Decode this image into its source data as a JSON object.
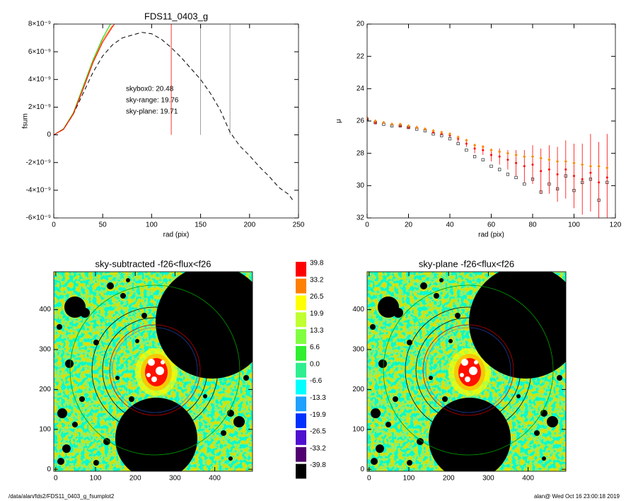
{
  "chart_data": [
    {
      "type": "line",
      "title": "FDS11_0403_g",
      "xlabel": "rad (pix)",
      "ylabel": "fsum",
      "xlim": [
        0,
        250
      ],
      "xticks": [
        0,
        50,
        100,
        150,
        200,
        250
      ],
      "ylim": [
        -6e-09,
        8e-09
      ],
      "yticks": [
        {
          "value": -6e-09,
          "label": "-6×10⁻⁹"
        },
        {
          "value": -4e-09,
          "label": "-4×10⁻⁹"
        },
        {
          "value": -2e-09,
          "label": "-2×10⁻⁹"
        },
        0,
        {
          "value": 2e-09,
          "label": "2×10⁻⁹"
        },
        {
          "value": 4e-09,
          "label": "4×10⁻⁹"
        },
        {
          "value": 6e-09,
          "label": "6×10⁻⁹"
        },
        {
          "value": 8e-09,
          "label": "8×10⁻⁹"
        }
      ],
      "series": [
        {
          "color": "#000000",
          "dash": true,
          "x": [
            0,
            10,
            20,
            30,
            40,
            50,
            60,
            70,
            80,
            90,
            100,
            110,
            120,
            130,
            140,
            150,
            160,
            170,
            180,
            190,
            200,
            210,
            220,
            230,
            240,
            245
          ],
          "values": [
            0,
            4e-10,
            1.5e-09,
            3e-09,
            4.5e-09,
            5.7e-09,
            6.5e-09,
            7e-09,
            7.2e-09,
            7.4e-09,
            7.3e-09,
            6.9e-09,
            6.3e-09,
            5.6e-09,
            4.8e-09,
            4e-09,
            3e-09,
            1.8e-09,
            2e-10,
            -8e-10,
            -1.5e-09,
            -2.3e-09,
            -3e-09,
            -3.8e-09,
            -4.3e-09,
            -4.8e-09
          ]
        },
        {
          "color": "#00dd00",
          "dash": false,
          "x": [
            0,
            10,
            20,
            30,
            40,
            50,
            58
          ],
          "values": [
            0,
            4.5e-10,
            1.6e-09,
            3.5e-09,
            5.4e-09,
            7e-09,
            8e-09
          ]
        },
        {
          "color": "#ff8800",
          "dash": false,
          "x": [
            0,
            10,
            20,
            30,
            40,
            50,
            60
          ],
          "values": [
            0,
            4.2e-10,
            1.55e-09,
            3.4e-09,
            5.3e-09,
            6.85e-09,
            7.9e-09
          ]
        },
        {
          "color": "#ff0000",
          "dash": false,
          "x": [
            0,
            10,
            20,
            30,
            40,
            50,
            60,
            62
          ],
          "values": [
            0,
            4e-10,
            1.5e-09,
            3.3e-09,
            5.2e-09,
            6.7e-09,
            7.8e-09,
            8e-09
          ]
        }
      ],
      "vlines": [
        {
          "x": 120,
          "color": "#ff0000"
        },
        {
          "x": 150,
          "color": "#888888"
        },
        {
          "x": 180,
          "color": "#888888"
        }
      ],
      "annotations": [
        {
          "text": "skybox0: 20.48",
          "color": "#000000"
        },
        {
          "text": "sky-range: 19.76",
          "color": "#ff0000"
        },
        {
          "text": "sky-plane: 19.71",
          "color": "#00dd00"
        }
      ]
    },
    {
      "type": "scatter",
      "xlabel": "rad (pix)",
      "ylabel": "μ",
      "xlim": [
        0,
        120
      ],
      "xticks": [
        0,
        20,
        40,
        60,
        80,
        100,
        120
      ],
      "ylim": [
        32,
        20
      ],
      "yticks": [
        20,
        22,
        24,
        26,
        28,
        30,
        32
      ],
      "x": [
        0,
        4,
        8,
        12,
        16,
        20,
        24,
        28,
        32,
        36,
        40,
        44,
        48,
        52,
        56,
        60,
        64,
        68,
        72,
        76,
        80,
        84,
        88,
        92,
        96,
        100,
        104,
        108,
        112,
        116
      ],
      "series": [
        {
          "color": "#000000",
          "marker": "square",
          "values": [
            25.9,
            26.1,
            26.2,
            26.3,
            26.3,
            26.4,
            26.5,
            26.6,
            26.8,
            26.9,
            27.1,
            27.4,
            27.8,
            28.2,
            28.4,
            28.8,
            29.0,
            29.3,
            29.5,
            29.9,
            29.6,
            30.4,
            29.9,
            30.2,
            29.4,
            30.3,
            29.8,
            29.6,
            30.9,
            29.8
          ]
        },
        {
          "color": "#ff0000",
          "marker": "errorbar",
          "values": [
            25.9,
            26.1,
            26.1,
            26.2,
            26.3,
            26.4,
            26.4,
            26.5,
            26.7,
            26.8,
            26.9,
            27.1,
            27.4,
            27.7,
            27.8,
            28.1,
            28.2,
            28.4,
            28.6,
            28.8,
            28.7,
            29.1,
            29.0,
            29.3,
            29.0,
            29.4,
            29.6,
            29.2,
            29.8,
            29.5
          ],
          "errors": [
            0.1,
            0.1,
            0.1,
            0.1,
            0.1,
            0.1,
            0.1,
            0.1,
            0.1,
            0.1,
            0.1,
            0.2,
            0.2,
            0.3,
            0.3,
            0.4,
            0.5,
            0.6,
            0.8,
            1.0,
            1.2,
            1.4,
            1.5,
            1.7,
            1.8,
            2.0,
            2.2,
            2.4,
            2.5,
            2.7
          ]
        },
        {
          "color": "#ff8800",
          "marker": "diamond",
          "values": [
            25.8,
            26.0,
            26.1,
            26.2,
            26.2,
            26.3,
            26.4,
            26.5,
            26.6,
            26.7,
            26.8,
            27.0,
            27.2,
            27.5,
            27.6,
            27.8,
            27.9,
            28.0,
            28.1,
            28.2,
            28.2,
            28.3,
            28.4,
            28.5,
            28.5,
            28.6,
            28.7,
            28.8,
            28.8,
            28.9
          ]
        }
      ]
    },
    {
      "type": "image",
      "title": "sky-subtracted -f26<flux<f26",
      "xlim": [
        -5,
        495
      ],
      "xticks": [
        0,
        100,
        200,
        300,
        400
      ],
      "ylim": [
        -5,
        495
      ],
      "yticks": [
        0,
        100,
        200,
        300,
        400
      ],
      "colorbar": {
        "ticks": [
          39.8,
          33.2,
          26.5,
          19.9,
          13.3,
          6.6,
          {
            "value": 0,
            "label": "0.0"
          },
          -6.6,
          -13.3,
          -19.9,
          -26.5,
          -33.2,
          -39.8
        ],
        "colors": [
          "#ff0000",
          "#ff8000",
          "#ffff00",
          "#c0ff30",
          "#80ff40",
          "#30ee30",
          "#30ee90",
          "#00ffff",
          "#20a0ff",
          "#0030ff",
          "#5010d0",
          "#500070",
          "#000000"
        ]
      }
    },
    {
      "type": "image",
      "title": "sky-plane -f26<flux<f26",
      "xlim": [
        -5,
        495
      ],
      "xticks": [
        0,
        100,
        200,
        300,
        400
      ],
      "ylim": [
        -5,
        495
      ],
      "yticks": [
        0,
        100,
        200,
        300,
        400
      ]
    }
  ],
  "footer": {
    "left": "/data/alan/fds2/FDS11_0403_g_fsumplot2",
    "right": "alan@  Wed Oct 16 23:00:18 2019"
  }
}
